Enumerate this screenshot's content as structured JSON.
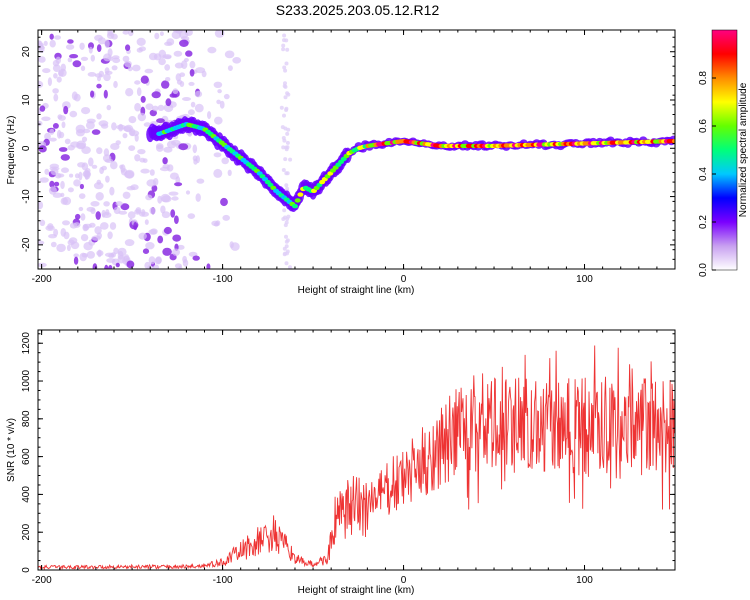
{
  "title": "S233.2025.203.05.12.R12",
  "chart_data": [
    {
      "type": "heatmap",
      "name": "spectrogram",
      "xlabel": "Height of straight line (km)",
      "ylabel": "Frequency (Hz)",
      "xlim": [
        -202,
        150
      ],
      "ylim": [
        -25,
        24.5
      ],
      "x_ticks": [
        -200,
        -100,
        0,
        100
      ],
      "y_ticks": [
        -20,
        -10,
        0,
        10,
        20
      ],
      "colorbar": {
        "label": "Normalized spectral amplitude",
        "range": [
          0,
          1
        ],
        "ticks": [
          "0.0",
          "0.2",
          "0.4",
          "0.6",
          "0.8"
        ],
        "colormap": [
          "#ffffff",
          "#c8a0f0",
          "#7a00ff",
          "#0000ff",
          "#00c8ff",
          "#00ff7a",
          "#64ff00",
          "#ffff00",
          "#ff8c00",
          "#ff0000",
          "#ff0080"
        ]
      },
      "ridge": {
        "x": [
          -135,
          -120,
          -110,
          -100,
          -90,
          -80,
          -70,
          -60,
          -55,
          -50,
          -45,
          -40,
          -35,
          -30,
          -25,
          -20,
          -10,
          0,
          20,
          50,
          100,
          150
        ],
        "y": [
          3,
          5,
          4,
          1,
          -2,
          -5,
          -9,
          -12,
          -8,
          -9,
          -7,
          -5,
          -3,
          -1,
          0,
          0.5,
          1,
          1.5,
          0.5,
          0.5,
          1,
          1.5
        ]
      }
    },
    {
      "type": "line",
      "name": "snr",
      "xlabel": "Height of straight line (km)",
      "ylabel": "SNR (10 * v/v)",
      "xlim": [
        -202,
        150
      ],
      "ylim": [
        0,
        1270
      ],
      "x_ticks": [
        -200,
        -100,
        0,
        100
      ],
      "y_ticks": [
        0,
        200,
        400,
        600,
        800,
        1000,
        1200
      ],
      "color": "#ee3333",
      "trend": {
        "x": [
          -202,
          -120,
          -110,
          -100,
          -90,
          -80,
          -72,
          -65,
          -58,
          -50,
          -42,
          -38,
          -30,
          -20,
          -10,
          0,
          10,
          20,
          30,
          40,
          50,
          60,
          80,
          100,
          120,
          150
        ],
        "y": [
          15,
          18,
          22,
          40,
          100,
          150,
          190,
          120,
          50,
          30,
          60,
          250,
          320,
          350,
          420,
          480,
          560,
          650,
          720,
          780,
          760,
          780,
          780,
          760,
          740,
          770
        ]
      }
    }
  ]
}
